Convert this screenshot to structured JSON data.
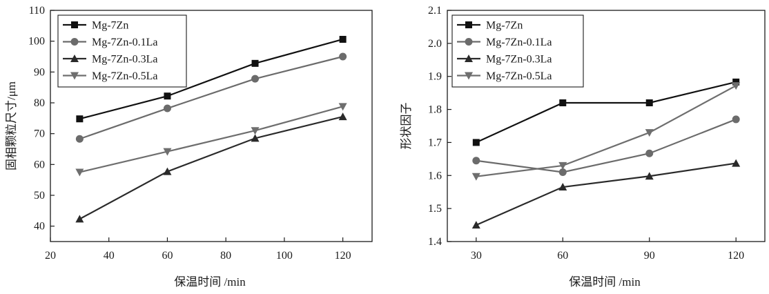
{
  "chart_data": [
    {
      "type": "line",
      "title": "",
      "xlabel": "保温时间 /min",
      "ylabel": "固相颗粒尺寸/μm",
      "x": [
        30,
        60,
        90,
        120
      ],
      "xlim": [
        20,
        130
      ],
      "ylim": [
        35,
        110
      ],
      "xticks": [
        20,
        40,
        60,
        80,
        100,
        120
      ],
      "yticks": [
        40,
        50,
        60,
        70,
        80,
        90,
        100,
        110
      ],
      "legend_position": "top-left",
      "grid": false,
      "series": [
        {
          "name": "Mg-7Zn",
          "marker": "square",
          "color": "#111111",
          "values": [
            74.8,
            82.2,
            92.8,
            100.6
          ]
        },
        {
          "name": "Mg-7Zn-0.1La",
          "marker": "circle",
          "color": "#6b6b6b",
          "values": [
            68.3,
            78.2,
            87.8,
            95.0
          ]
        },
        {
          "name": "Mg-7Zn-0.3La",
          "marker": "triangle-up",
          "color": "#2a2a2a",
          "values": [
            42.3,
            57.7,
            68.5,
            75.5
          ]
        },
        {
          "name": "Mg-7Zn-0.5La",
          "marker": "triangle-down",
          "color": "#6e6e6e",
          "values": [
            57.5,
            64.2,
            71.0,
            78.8
          ]
        }
      ]
    },
    {
      "type": "line",
      "title": "",
      "xlabel": "保温时间 /min",
      "ylabel": "形状因子",
      "x": [
        30,
        60,
        90,
        120
      ],
      "xlim": [
        20,
        130
      ],
      "ylim": [
        1.4,
        2.1
      ],
      "xticks": [
        30,
        60,
        90,
        120
      ],
      "yticks": [
        1.4,
        1.5,
        1.6,
        1.7,
        1.8,
        1.9,
        2.0,
        2.1
      ],
      "legend_position": "top-left",
      "grid": false,
      "series": [
        {
          "name": "Mg-7Zn",
          "marker": "square",
          "color": "#111111",
          "values": [
            1.7,
            1.82,
            1.82,
            1.883
          ]
        },
        {
          "name": "Mg-7Zn-0.1La",
          "marker": "circle",
          "color": "#6b6b6b",
          "values": [
            1.645,
            1.61,
            1.667,
            1.77
          ]
        },
        {
          "name": "Mg-7Zn-0.3La",
          "marker": "triangle-up",
          "color": "#2a2a2a",
          "values": [
            1.45,
            1.565,
            1.598,
            1.637
          ]
        },
        {
          "name": "Mg-7Zn-0.5La",
          "marker": "triangle-down",
          "color": "#6e6e6e",
          "values": [
            1.597,
            1.63,
            1.73,
            1.872
          ]
        }
      ]
    }
  ]
}
